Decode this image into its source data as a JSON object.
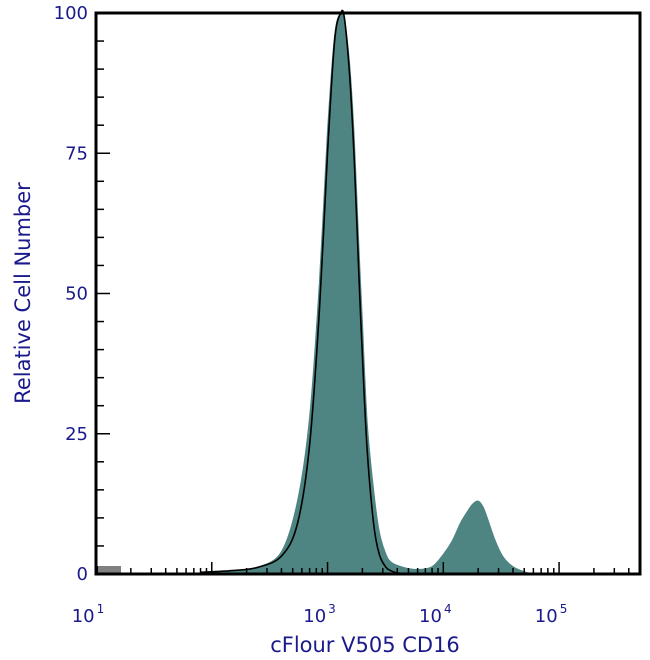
{
  "chart_data": {
    "type": "area",
    "xlabel": "cFlour V505 CD16",
    "ylabel": "Relative Cell Number",
    "x_scale": "log",
    "xlim": [
      10,
      500000
    ],
    "ylim": [
      0,
      100
    ],
    "x_ticks": [
      {
        "value": 10,
        "base": "10",
        "exp": "1"
      },
      {
        "value": 1000,
        "base": "10",
        "exp": "3"
      },
      {
        "value": 10000,
        "base": "10",
        "exp": "4"
      },
      {
        "value": 100000,
        "base": "10",
        "exp": "5"
      }
    ],
    "y_ticks": [
      {
        "value": 0,
        "label": "0"
      },
      {
        "value": 25,
        "label": "25"
      },
      {
        "value": 50,
        "label": "50"
      },
      {
        "value": 75,
        "label": "75"
      },
      {
        "value": 100,
        "label": "100"
      }
    ],
    "grid": false,
    "legend": "none",
    "colors": {
      "sample_fill": "#4e8582",
      "control_line": "#000000",
      "axis": "#000000",
      "text": "#1a1a8c"
    },
    "series": [
      {
        "role": "sample-filled",
        "x": [
          80,
          150,
          250,
          400,
          550,
          700,
          850,
          1000,
          1150,
          1300,
          1400,
          1550,
          1700,
          1850,
          2000,
          2200,
          2500,
          2800,
          3200,
          3600,
          4500,
          6000,
          8000,
          10000,
          12000,
          14000,
          16000,
          18000,
          20000,
          22000,
          24000,
          28000,
          33000,
          40000,
          50000,
          60000
        ],
        "y": [
          0.3,
          0.6,
          1.2,
          4,
          13,
          28,
          52,
          79,
          96,
          100,
          99,
          91,
          78,
          60,
          45,
          27,
          15,
          7.5,
          3.5,
          2,
          1.2,
          0.8,
          1.3,
          3.5,
          6,
          9,
          11,
          12.5,
          13,
          12,
          10,
          6,
          3,
          1.3,
          0.4,
          0
        ]
      },
      {
        "role": "control-outline",
        "x": [
          80,
          150,
          250,
          400,
          550,
          700,
          850,
          1000,
          1150,
          1300,
          1400,
          1550,
          1700,
          1850,
          2000,
          2200,
          2500,
          2800,
          3200,
          3600,
          4000,
          5000
        ],
        "y": [
          0.3,
          0.6,
          1.2,
          3.2,
          9,
          23,
          47,
          75,
          95,
          100,
          99,
          89,
          74,
          55,
          39,
          22,
          9,
          3.5,
          1.2,
          0.5,
          0.2,
          0
        ]
      }
    ]
  }
}
